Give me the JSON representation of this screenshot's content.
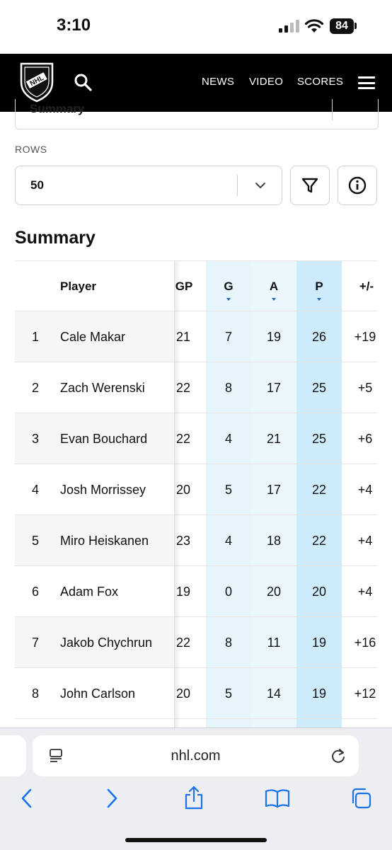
{
  "status": {
    "time": "3:10",
    "battery": "84"
  },
  "nav": {
    "links": [
      "NEWS",
      "VIDEO",
      "SCORES"
    ]
  },
  "report_select": {
    "value": "Summary"
  },
  "rows": {
    "label": "ROWS",
    "value": "50"
  },
  "section_title": "Summary",
  "table": {
    "headers": {
      "player": "Player",
      "gp": "GP",
      "g": "G",
      "a": "A",
      "p": "P",
      "pm": "+/-"
    },
    "sorted_columns": [
      "G",
      "A",
      "P"
    ],
    "rows": [
      {
        "rank": "1",
        "player": "Cale Makar",
        "gp": "21",
        "g": "7",
        "a": "19",
        "p": "26",
        "pm": "+19"
      },
      {
        "rank": "2",
        "player": "Zach Werenski",
        "gp": "22",
        "g": "8",
        "a": "17",
        "p": "25",
        "pm": "+5"
      },
      {
        "rank": "3",
        "player": "Evan Bouchard",
        "gp": "22",
        "g": "4",
        "a": "21",
        "p": "25",
        "pm": "+6"
      },
      {
        "rank": "4",
        "player": "Josh Morrissey",
        "gp": "20",
        "g": "5",
        "a": "17",
        "p": "22",
        "pm": "+4"
      },
      {
        "rank": "5",
        "player": "Miro Heiskanen",
        "gp": "23",
        "g": "4",
        "a": "18",
        "p": "22",
        "pm": "+4"
      },
      {
        "rank": "6",
        "player": "Adam Fox",
        "gp": "19",
        "g": "0",
        "a": "20",
        "p": "20",
        "pm": "+4"
      },
      {
        "rank": "7",
        "player": "Jakob Chychrun",
        "gp": "22",
        "g": "8",
        "a": "11",
        "p": "19",
        "pm": "+16"
      },
      {
        "rank": "8",
        "player": "John Carlson",
        "gp": "20",
        "g": "5",
        "a": "14",
        "p": "19",
        "pm": "+12"
      }
    ]
  },
  "browser": {
    "url": "nhl.com"
  },
  "colors": {
    "navbar": "#000000",
    "highlight": "#e6f4fc",
    "highlight_sorted": "#cdebfa",
    "accent": "#1a66c2"
  },
  "icons": [
    "nhl-logo",
    "search-icon",
    "hamburger-icon",
    "chevron-down-icon",
    "filter-icon",
    "info-icon",
    "page-menu-icon",
    "reload-icon",
    "back-icon",
    "forward-icon",
    "share-icon",
    "bookmarks-icon",
    "tabs-icon"
  ]
}
